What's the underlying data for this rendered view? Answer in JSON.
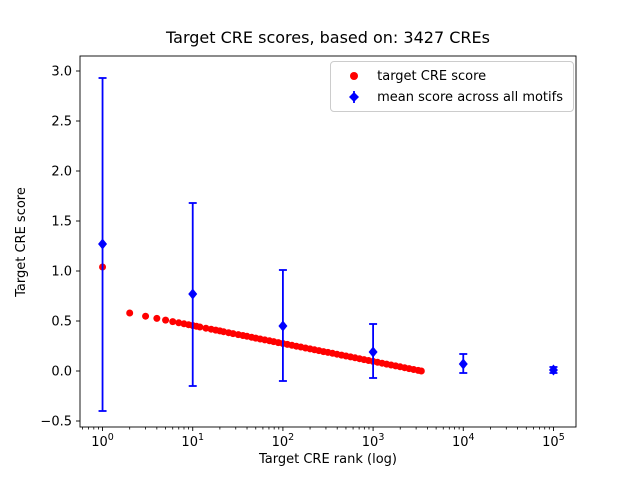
{
  "chart_data": {
    "type": "scatter",
    "title": "Target CRE scores, based on: 3427 CREs",
    "xlabel": "Target CRE rank (log)",
    "ylabel": "Target CRE score",
    "xscale": "log",
    "xlim_log10": [
      -0.25,
      5.25
    ],
    "ylim": [
      -0.56,
      3.15
    ],
    "yticks": [
      -0.5,
      0.0,
      0.5,
      1.0,
      1.5,
      2.0,
      2.5,
      3.0
    ],
    "ytick_labels": [
      "−0.5",
      "0.0",
      "0.5",
      "1.0",
      "1.5",
      "2.0",
      "2.5",
      "3.0"
    ],
    "xtick_exponents": [
      0,
      1,
      2,
      3,
      4,
      5
    ],
    "grid": false,
    "legend_position": "upper right",
    "series": [
      {
        "name": "target CRE score",
        "type": "scatter",
        "marker": "circle",
        "color": "#ff0000",
        "points": [
          [
            1,
            1.04
          ],
          [
            2,
            0.58
          ],
          [
            3,
            0.548
          ],
          [
            4,
            0.526
          ],
          [
            5,
            0.509
          ],
          [
            6,
            0.494
          ],
          [
            7,
            0.482
          ],
          [
            8,
            0.472
          ],
          [
            9,
            0.463
          ],
          [
            10,
            0.455
          ],
          [
            11,
            0.447
          ],
          [
            12,
            0.44
          ],
          [
            14,
            0.428
          ],
          [
            16,
            0.418
          ],
          [
            18,
            0.409
          ],
          [
            20,
            0.401
          ],
          [
            22,
            0.393
          ],
          [
            25,
            0.383
          ],
          [
            28,
            0.374
          ],
          [
            32,
            0.364
          ],
          [
            36,
            0.355
          ],
          [
            40,
            0.347
          ],
          [
            45,
            0.337
          ],
          [
            50,
            0.329
          ],
          [
            56,
            0.32
          ],
          [
            63,
            0.311
          ],
          [
            71,
            0.302
          ],
          [
            79,
            0.294
          ],
          [
            89,
            0.284
          ],
          [
            100,
            0.275
          ],
          [
            112,
            0.266
          ],
          [
            126,
            0.257
          ],
          [
            141,
            0.248
          ],
          [
            158,
            0.24
          ],
          [
            178,
            0.23
          ],
          [
            200,
            0.221
          ],
          [
            224,
            0.212
          ],
          [
            251,
            0.204
          ],
          [
            282,
            0.194
          ],
          [
            316,
            0.186
          ],
          [
            355,
            0.177
          ],
          [
            398,
            0.168
          ],
          [
            447,
            0.159
          ],
          [
            501,
            0.15
          ],
          [
            562,
            0.141
          ],
          [
            631,
            0.132
          ],
          [
            708,
            0.123
          ],
          [
            794,
            0.114
          ],
          [
            891,
            0.105
          ],
          [
            1000,
            0.096
          ],
          [
            1122,
            0.087
          ],
          [
            1259,
            0.078
          ],
          [
            1413,
            0.069
          ],
          [
            1585,
            0.06
          ],
          [
            1778,
            0.051
          ],
          [
            1995,
            0.042
          ],
          [
            2239,
            0.033
          ],
          [
            2512,
            0.024
          ],
          [
            2818,
            0.015
          ],
          [
            3162,
            0.006
          ],
          [
            3427,
            0.0
          ]
        ]
      },
      {
        "name": "mean score across all motifs",
        "type": "errorbar",
        "marker": "diamond",
        "color": "#0000ff",
        "points": [
          {
            "x": 1,
            "y": 1.27,
            "lo": -0.4,
            "hi": 2.93
          },
          {
            "x": 10,
            "y": 0.77,
            "lo": -0.15,
            "hi": 1.68
          },
          {
            "x": 100,
            "y": 0.45,
            "lo": -0.1,
            "hi": 1.01
          },
          {
            "x": 1000,
            "y": 0.19,
            "lo": -0.07,
            "hi": 0.47
          },
          {
            "x": 10000,
            "y": 0.07,
            "lo": -0.02,
            "hi": 0.17
          },
          {
            "x": 100000,
            "y": 0.01,
            "lo": -0.02,
            "hi": 0.04
          }
        ]
      }
    ]
  }
}
